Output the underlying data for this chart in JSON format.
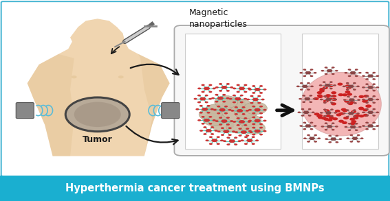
{
  "title": "Hyperthermia cancer treatment using BMNPs",
  "title_bg_color": "#1aafd0",
  "title_text_color": "#ffffff",
  "title_fontsize": 10.5,
  "border_color": "#4db8d4",
  "background_color": "#ffffff",
  "label_magnetic": "Magnetic\nnanoparticles",
  "label_tumor": "Tumor",
  "skin_color": "#f0d5b0",
  "skin_shadow": "#e0c090",
  "tumor_fill": "#b0a090",
  "tumor_border": "#555555",
  "magnet_color": "#888888",
  "wave_color": "#5abcd8",
  "panel_bg": "#f5f5f5",
  "panel_border": "#bbbbbb",
  "heated_fill": "#f0b0b0",
  "arrow_color": "#1a1a1a",
  "teal_color": "#55ccbb",
  "red_nano": "#cc3333",
  "blob_fill": "#c8b8a0",
  "blob_edge": "#a89880",
  "nano_right_fill": "#aa7777",
  "nano_right_spoke": "#999999",
  "red_dot_color": "#cc2222"
}
